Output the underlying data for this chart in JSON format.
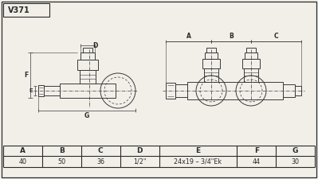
{
  "title": "V371",
  "bg_color": "#f2efe9",
  "border_color": "#2a2a2a",
  "line_color": "#3a3a3a",
  "table_headers": [
    "A",
    "B",
    "C",
    "D",
    "E",
    "F",
    "G"
  ],
  "table_values": [
    "40",
    "50",
    "36",
    "1/2\"",
    "24x19 – 3/4\"Ek",
    "44",
    "30"
  ],
  "col_w_ratios": [
    1,
    1,
    1,
    1,
    2,
    1,
    1
  ]
}
